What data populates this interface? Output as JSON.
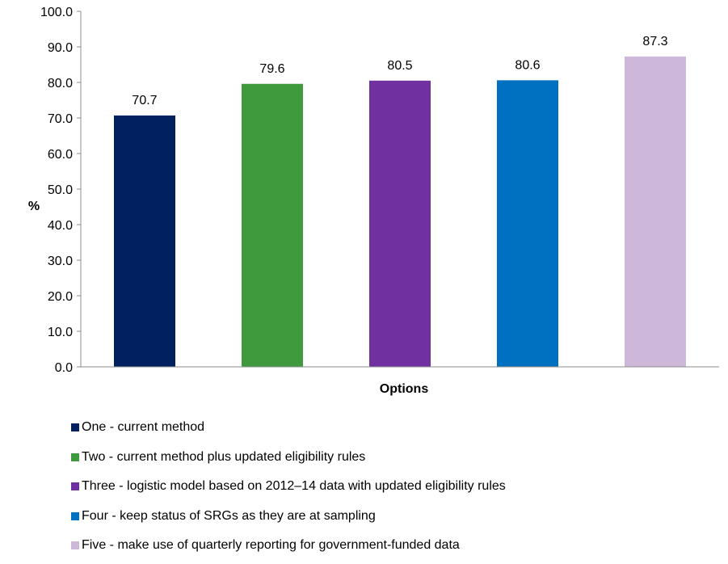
{
  "chart_data": {
    "type": "bar",
    "categories": [
      "One - current method",
      "Two - current method plus updated eligibility rules",
      "Three - logistic model based on 2012–14 data with updated eligibility rules",
      "Four - keep status of SRGs as they are at sampling",
      "Five - make use of quarterly reporting for government-funded data"
    ],
    "values": [
      70.7,
      79.6,
      80.5,
      80.6,
      87.3
    ],
    "value_labels": [
      "70.7",
      "79.6",
      "80.5",
      "80.6",
      "87.3"
    ],
    "colors": [
      "#002060",
      "#3F9A3D",
      "#7030A0",
      "#0070C0",
      "#CDB8D9"
    ],
    "xlabel": "Options",
    "ylabel": "%",
    "ylim": [
      0,
      100
    ],
    "yticks": [
      "0.0",
      "10.0",
      "20.0",
      "30.0",
      "40.0",
      "50.0",
      "60.0",
      "70.0",
      "80.0",
      "90.0",
      "100.0"
    ],
    "grid": false,
    "legend_position": "bottom"
  }
}
